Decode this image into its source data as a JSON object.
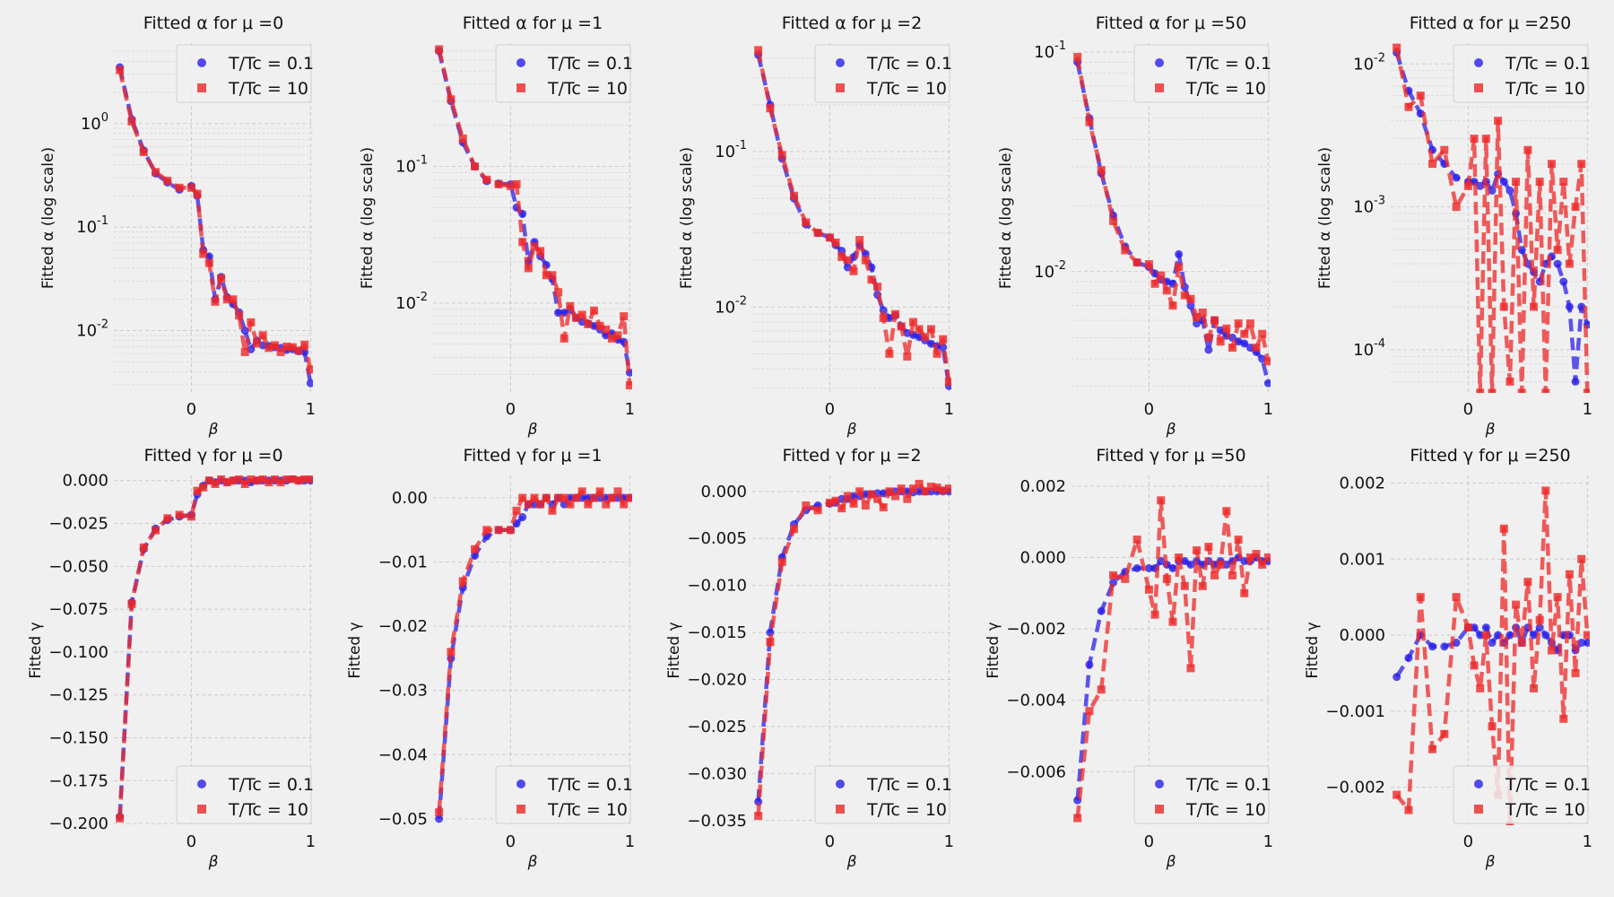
{
  "legend_labels": [
    "T/Tc = 0.1",
    "T/Tc = 10"
  ],
  "series_colors": [
    "#2b1fe8",
    "#ee2828"
  ],
  "beta_values": [
    -0.6,
    -0.5,
    -0.4,
    -0.3,
    -0.2,
    -0.1,
    0.0,
    0.05,
    0.1,
    0.15,
    0.2,
    0.25,
    0.3,
    0.35,
    0.4,
    0.45,
    0.5,
    0.55,
    0.6,
    0.65,
    0.7,
    0.75,
    0.8,
    0.85,
    0.9,
    0.95,
    1.0
  ],
  "chart_data": [
    {
      "type": "line",
      "title": "Fitted α for μ =0",
      "xlabel": "β",
      "ylabel": "Fitted α (log scale)",
      "yscale": "log",
      "xlim": [
        -0.65,
        1.02
      ],
      "ylim": [
        0.0025,
        6
      ],
      "yticks": [
        {
          "v": 0.01,
          "label": "10^-2"
        },
        {
          "v": 0.1,
          "label": "10^-1"
        },
        {
          "v": 1,
          "label": "10^0"
        }
      ],
      "xticks": [
        0,
        1
      ],
      "legend": "top-right",
      "series": [
        {
          "name": "T/Tc = 0.1",
          "values": [
            3.5,
            1.1,
            0.55,
            0.33,
            0.27,
            0.23,
            0.25,
            0.2,
            0.06,
            0.052,
            0.02,
            0.033,
            0.021,
            0.018,
            0.015,
            0.01,
            0.0066,
            0.008,
            0.0072,
            0.0071,
            0.0069,
            0.0068,
            0.0065,
            0.0066,
            0.0063,
            0.0062,
            0.0031
          ]
        },
        {
          "name": "T/Tc = 10",
          "values": [
            3.3,
            1.05,
            0.53,
            0.34,
            0.28,
            0.24,
            0.24,
            0.21,
            0.055,
            0.045,
            0.019,
            0.032,
            0.02,
            0.02,
            0.014,
            0.0062,
            0.012,
            0.0075,
            0.009,
            0.0068,
            0.0072,
            0.0062,
            0.007,
            0.0069,
            0.0064,
            0.0073,
            0.0042
          ]
        }
      ]
    },
    {
      "type": "line",
      "title": "Fitted α for μ =1",
      "xlabel": "β",
      "ylabel": "Fitted α (log scale)",
      "yscale": "log",
      "xlim": [
        -0.65,
        1.02
      ],
      "ylim": [
        0.0022,
        0.8
      ],
      "yticks": [
        {
          "v": 0.01,
          "label": "10^-2"
        },
        {
          "v": 0.1,
          "label": "10^-1"
        }
      ],
      "xticks": [
        0,
        1
      ],
      "legend": "top-right",
      "series": [
        {
          "name": "T/Tc = 0.1",
          "values": [
            0.7,
            0.3,
            0.15,
            0.1,
            0.078,
            0.075,
            0.074,
            0.05,
            0.045,
            0.02,
            0.028,
            0.022,
            0.019,
            0.015,
            0.0085,
            0.0085,
            0.009,
            0.0078,
            0.0073,
            0.0071,
            0.0068,
            0.0064,
            0.0058,
            0.006,
            0.0054,
            0.0052,
            0.0031
          ]
        },
        {
          "name": "T/Tc = 10",
          "values": [
            0.72,
            0.31,
            0.16,
            0.1,
            0.08,
            0.074,
            0.072,
            0.074,
            0.028,
            0.018,
            0.026,
            0.024,
            0.016,
            0.016,
            0.012,
            0.0055,
            0.0095,
            0.0078,
            0.0082,
            0.007,
            0.0088,
            0.0068,
            0.0064,
            0.0055,
            0.0058,
            0.008,
            0.0025
          ]
        }
      ]
    },
    {
      "type": "line",
      "title": "Fitted α for μ =2",
      "xlabel": "β",
      "ylabel": "Fitted α (log scale)",
      "yscale": "log",
      "xlim": [
        -0.65,
        1.02
      ],
      "ylim": [
        0.0028,
        0.5
      ],
      "yticks": [
        {
          "v": 0.01,
          "label": "10^-2"
        },
        {
          "v": 0.1,
          "label": "10^-1"
        }
      ],
      "xticks": [
        0,
        1
      ],
      "legend": "top-right",
      "series": [
        {
          "name": "T/Tc = 0.1",
          "values": [
            0.42,
            0.2,
            0.09,
            0.05,
            0.034,
            0.03,
            0.028,
            0.025,
            0.023,
            0.018,
            0.021,
            0.025,
            0.022,
            0.018,
            0.012,
            0.0095,
            0.0085,
            0.0088,
            0.0075,
            0.0068,
            0.0066,
            0.0064,
            0.0061,
            0.0058,
            0.0056,
            0.0055,
            0.0031
          ]
        },
        {
          "name": "T/Tc = 10",
          "values": [
            0.45,
            0.19,
            0.095,
            0.052,
            0.035,
            0.03,
            0.028,
            0.026,
            0.021,
            0.02,
            0.017,
            0.027,
            0.02,
            0.015,
            0.0135,
            0.0085,
            0.005,
            0.009,
            0.0075,
            0.0048,
            0.008,
            0.0072,
            0.0064,
            0.0072,
            0.005,
            0.0062,
            0.0033
          ]
        }
      ]
    },
    {
      "type": "line",
      "title": "Fitted α for μ =50",
      "xlabel": "β",
      "ylabel": "Fitted α (log scale)",
      "yscale": "log",
      "xlim": [
        -0.65,
        1.02
      ],
      "ylim": [
        0.0028,
        0.11
      ],
      "yticks": [
        {
          "v": 0.01,
          "label": "10^-2"
        },
        {
          "v": 0.1,
          "label": "10^-1"
        }
      ],
      "xticks": [
        0,
        1
      ],
      "legend": "top-right",
      "series": [
        {
          "name": "T/Tc = 0.1",
          "values": [
            0.09,
            0.05,
            0.028,
            0.018,
            0.013,
            0.011,
            0.0105,
            0.0098,
            0.0092,
            0.009,
            0.0088,
            0.012,
            0.0085,
            0.007,
            0.0058,
            0.006,
            0.0044,
            0.006,
            0.0054,
            0.0051,
            0.005,
            0.0048,
            0.0047,
            0.0045,
            0.0043,
            0.004,
            0.0031
          ]
        },
        {
          "name": "T/Tc = 10",
          "values": [
            0.095,
            0.048,
            0.029,
            0.017,
            0.0125,
            0.011,
            0.0108,
            0.0088,
            0.0096,
            0.0082,
            0.007,
            0.0105,
            0.0078,
            0.0075,
            0.0062,
            0.0065,
            0.005,
            0.006,
            0.0048,
            0.0055,
            0.0045,
            0.0058,
            0.0052,
            0.0058,
            0.0045,
            0.0052,
            0.0039
          ]
        }
      ]
    },
    {
      "type": "line",
      "title": "Fitted α for μ =250",
      "xlabel": "β",
      "ylabel": "Fitted α (log scale)",
      "yscale": "log",
      "xlim": [
        -0.65,
        1.02
      ],
      "ylim": [
        5e-05,
        0.014
      ],
      "yticks": [
        {
          "v": 0.0001,
          "label": "10^-4"
        },
        {
          "v": 0.001,
          "label": "10^-3"
        },
        {
          "v": 0.01,
          "label": "10^-2"
        }
      ],
      "xticks": [
        0,
        1
      ],
      "legend": "top-right",
      "series": [
        {
          "name": "T/Tc = 0.1",
          "values": [
            0.012,
            0.0065,
            0.0045,
            0.0025,
            0.002,
            0.0016,
            0.0015,
            0.0015,
            0.0014,
            0.0015,
            0.0013,
            0.0017,
            0.0015,
            0.0013,
            0.0009,
            0.0005,
            0.0004,
            0.00035,
            0.0003,
            0.0004,
            0.00045,
            0.0004,
            0.0003,
            0.0002,
            6e-05,
            0.0002,
            0.00015
          ]
        },
        {
          "name": "T/Tc = 10",
          "values": [
            0.013,
            0.005,
            0.006,
            0.002,
            0.0025,
            0.001,
            0.0014,
            0.003,
            5e-05,
            0.003,
            5e-05,
            0.004,
            0.0002,
            6e-05,
            0.0015,
            5e-05,
            0.0025,
            0.0002,
            0.0015,
            5e-05,
            0.002,
            0.0005,
            0.0015,
            0.0004,
            0.001,
            0.002,
            5e-05
          ]
        }
      ]
    },
    {
      "type": "line",
      "title": "Fitted γ for μ =0",
      "xlabel": "β",
      "ylabel": "Fitted γ",
      "yscale": "linear",
      "xlim": [
        -0.65,
        1.02
      ],
      "ylim": [
        -0.201,
        0.003
      ],
      "yticks": [
        {
          "v": 0,
          "label": "0.000"
        },
        {
          "v": -0.025,
          "label": "−0.025"
        },
        {
          "v": -0.05,
          "label": "−0.050"
        },
        {
          "v": -0.075,
          "label": "−0.075"
        },
        {
          "v": -0.1,
          "label": "−0.100"
        },
        {
          "v": -0.125,
          "label": "−0.125"
        },
        {
          "v": -0.15,
          "label": "−0.150"
        },
        {
          "v": -0.175,
          "label": "−0.175"
        },
        {
          "v": -0.2,
          "label": "−0.200"
        }
      ],
      "xticks": [
        0,
        1
      ],
      "legend": "bottom-right",
      "series": [
        {
          "name": "T/Tc = 0.1",
          "values": [
            -0.196,
            -0.071,
            -0.04,
            -0.028,
            -0.023,
            -0.021,
            -0.02,
            -0.008,
            -0.003,
            0.0,
            -0.001,
            0.0,
            -0.001,
            0.0,
            0.0,
            0.0,
            -0.001,
            0.0,
            0.0,
            0.0,
            0.0,
            0.0,
            0.0,
            0.001,
            0.0,
            0.0,
            0.0
          ]
        },
        {
          "name": "T/Tc = 10",
          "values": [
            -0.197,
            -0.072,
            -0.039,
            -0.029,
            -0.022,
            -0.02,
            -0.021,
            -0.006,
            -0.004,
            0.0,
            -0.002,
            0.001,
            -0.001,
            0.0,
            0.001,
            -0.002,
            0.001,
            0.0,
            0.001,
            -0.001,
            0.001,
            -0.001,
            0.001,
            0.001,
            0.0,
            0.001,
            0.001
          ]
        }
      ]
    },
    {
      "type": "line",
      "title": "Fitted γ for μ =1",
      "xlabel": "β",
      "ylabel": "Fitted γ",
      "yscale": "linear",
      "xlim": [
        -0.65,
        1.02
      ],
      "ylim": [
        -0.051,
        0.0035
      ],
      "yticks": [
        {
          "v": 0,
          "label": "0.00"
        },
        {
          "v": -0.01,
          "label": "−0.01"
        },
        {
          "v": -0.02,
          "label": "−0.02"
        },
        {
          "v": -0.03,
          "label": "−0.03"
        },
        {
          "v": -0.04,
          "label": "−0.04"
        },
        {
          "v": -0.05,
          "label": "−0.05"
        }
      ],
      "xticks": [
        0,
        1
      ],
      "legend": "bottom-right",
      "series": [
        {
          "name": "T/Tc = 0.1",
          "values": [
            -0.05,
            -0.025,
            -0.014,
            -0.009,
            -0.006,
            -0.005,
            -0.005,
            -0.004,
            -0.003,
            -0.001,
            -0.001,
            -0.001,
            0.0,
            -0.001,
            0.0,
            -0.001,
            0.0,
            0.0,
            0.0,
            0.0,
            0.0,
            0.0,
            0.0,
            0.0,
            0.0,
            0.0,
            0.0
          ]
        },
        {
          "name": "T/Tc = 10",
          "values": [
            -0.049,
            -0.024,
            -0.013,
            -0.008,
            -0.005,
            -0.005,
            -0.005,
            -0.002,
            0.0,
            -0.001,
            0.0,
            -0.001,
            0.0,
            -0.002,
            0.0,
            0.0,
            -0.001,
            0.0,
            0.001,
            -0.001,
            0.0,
            0.001,
            -0.001,
            0.0,
            0.001,
            -0.001,
            0.0
          ]
        }
      ]
    },
    {
      "type": "line",
      "title": "Fitted γ for μ =2",
      "xlabel": "β",
      "ylabel": "Fitted γ",
      "yscale": "linear",
      "xlim": [
        -0.65,
        1.02
      ],
      "ylim": [
        -0.0355,
        0.0017
      ],
      "yticks": [
        {
          "v": 0,
          "label": "0.000"
        },
        {
          "v": -0.005,
          "label": "−0.005"
        },
        {
          "v": -0.01,
          "label": "−0.010"
        },
        {
          "v": -0.015,
          "label": "−0.015"
        },
        {
          "v": -0.02,
          "label": "−0.020"
        },
        {
          "v": -0.025,
          "label": "−0.025"
        },
        {
          "v": -0.03,
          "label": "−0.030"
        },
        {
          "v": -0.035,
          "label": "−0.035"
        }
      ],
      "xticks": [
        0,
        1
      ],
      "legend": "bottom-right",
      "series": [
        {
          "name": "T/Tc = 0.1",
          "values": [
            -0.033,
            -0.015,
            -0.007,
            -0.0035,
            -0.002,
            -0.0015,
            -0.0013,
            -0.0012,
            -0.0008,
            -0.0008,
            -0.0005,
            -0.0005,
            -0.0003,
            -0.0003,
            -0.0002,
            -0.0002,
            -0.0001,
            0.0,
            0.0,
            0.0,
            -0.0001,
            0.0,
            0.0,
            0.0,
            0.0,
            0.0,
            0.0
          ]
        },
        {
          "name": "T/Tc = 10",
          "values": [
            -0.0345,
            -0.016,
            -0.0075,
            -0.004,
            -0.0015,
            -0.002,
            -0.0012,
            -0.001,
            -0.0018,
            -0.0005,
            -0.0013,
            0.0,
            -0.0015,
            -0.0003,
            -0.0008,
            -0.0017,
            0.0,
            -0.0005,
            0.0003,
            -0.0008,
            0.0003,
            0.0008,
            0.0,
            0.0005,
            0.0004,
            0.0001,
            0.0003
          ]
        }
      ]
    },
    {
      "type": "line",
      "title": "Fitted γ for μ =50",
      "xlabel": "β",
      "ylabel": "Fitted γ",
      "yscale": "linear",
      "xlim": [
        -0.65,
        1.02
      ],
      "ylim": [
        -0.0075,
        0.0023
      ],
      "yticks": [
        {
          "v": 0.002,
          "label": "0.002"
        },
        {
          "v": 0,
          "label": "0.000"
        },
        {
          "v": -0.002,
          "label": "−0.002"
        },
        {
          "v": -0.004,
          "label": "−0.004"
        },
        {
          "v": -0.006,
          "label": "−0.006"
        }
      ],
      "xticks": [
        0,
        1
      ],
      "legend": "bottom-right",
      "series": [
        {
          "name": "T/Tc = 0.1",
          "values": [
            -0.0068,
            -0.003,
            -0.0015,
            -0.0007,
            -0.0004,
            -0.0003,
            -0.0003,
            -0.0003,
            -0.0001,
            -0.0002,
            -0.0003,
            -0.0001,
            -0.0001,
            -0.0002,
            -0.0001,
            -0.0002,
            -0.0001,
            -0.0002,
            -0.0001,
            -0.0002,
            -0.0001,
            0.0,
            -0.0001,
            -0.0001,
            0.0,
            -0.0001,
            -0.0001
          ]
        },
        {
          "name": "T/Tc = 10",
          "values": [
            -0.0073,
            -0.0043,
            -0.0037,
            -0.0005,
            -0.0006,
            0.0005,
            -0.0009,
            -0.0016,
            0.0016,
            -0.0006,
            -0.0018,
            0.0,
            -0.0008,
            -0.0031,
            0.0002,
            -0.0008,
            0.0003,
            -0.0005,
            -0.0002,
            0.0013,
            -0.0005,
            0.0005,
            -0.001,
            0.0,
            0.0001,
            -0.0002,
            0.0
          ]
        }
      ]
    },
    {
      "type": "line",
      "title": "Fitted γ for μ =250",
      "xlabel": "β",
      "ylabel": "Fitted γ",
      "yscale": "linear",
      "xlim": [
        -0.65,
        1.02
      ],
      "ylim": [
        -0.0025,
        0.0021
      ],
      "yticks": [
        {
          "v": 0.002,
          "label": "0.002"
        },
        {
          "v": 0.001,
          "label": "0.001"
        },
        {
          "v": 0,
          "label": "0.000"
        },
        {
          "v": -0.001,
          "label": "−0.001"
        },
        {
          "v": -0.002,
          "label": "−0.002"
        }
      ],
      "xticks": [
        0,
        1
      ],
      "legend": "bottom-right",
      "series": [
        {
          "name": "T/Tc = 0.1",
          "values": [
            -0.00055,
            -0.0003,
            0.0,
            -0.00015,
            -0.00015,
            -0.0001,
            0.0001,
            0.0001,
            0.0,
            0.0001,
            -0.0001,
            0.0,
            -0.0001,
            0.0,
            0.0001,
            -0.0001,
            0.0001,
            0.0,
            0.0001,
            0.0,
            -0.0001,
            -0.0002,
            0.0,
            0.0,
            -0.0002,
            -0.0001,
            -0.0001
          ]
        },
        {
          "name": "T/Tc = 10",
          "values": [
            -0.0021,
            -0.0023,
            0.0005,
            -0.0015,
            -0.0013,
            0.0005,
            0.0001,
            -0.0004,
            -0.0007,
            0.0,
            -0.0012,
            -0.0021,
            0.0014,
            -0.0025,
            0.0004,
            -0.0001,
            0.0007,
            -0.0007,
            0.0002,
            0.0019,
            -0.0002,
            0.0005,
            -0.0011,
            0.0008,
            -0.0005,
            0.001,
            0.0
          ]
        }
      ]
    }
  ]
}
